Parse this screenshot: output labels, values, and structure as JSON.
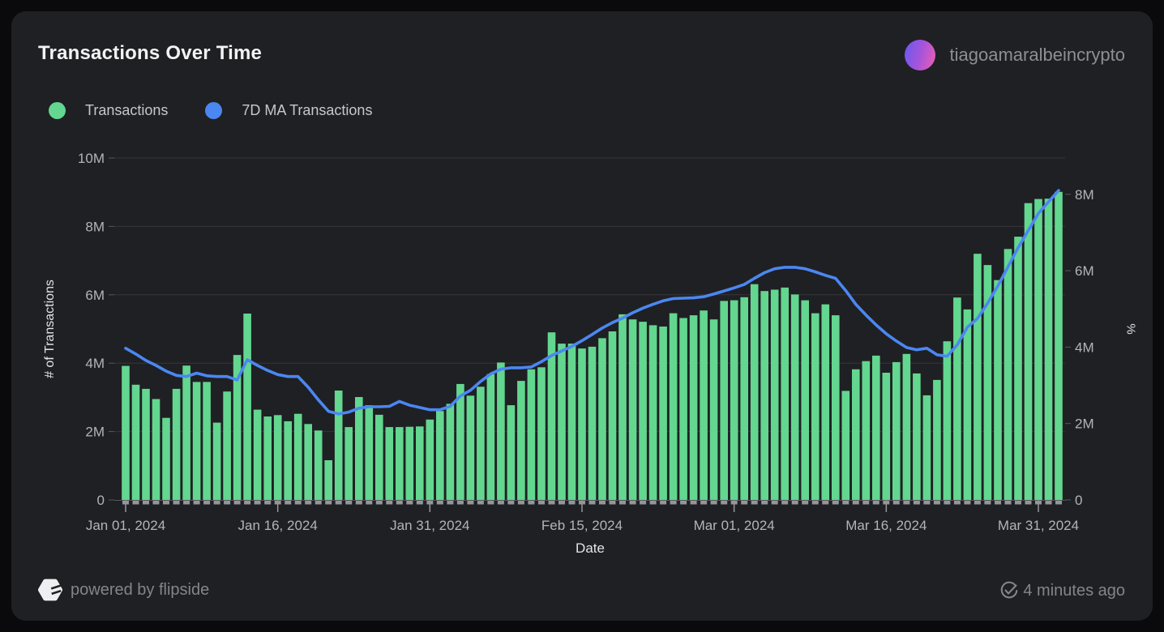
{
  "header": {
    "title": "Transactions Over Time",
    "username": "tiagoamaralbeincrypto"
  },
  "legend": [
    {
      "label": "Transactions",
      "color": "#63d68f"
    },
    {
      "label": "7D MA Transactions",
      "color": "#4b87f2"
    }
  ],
  "footer": {
    "powered_by": "powered by flipside",
    "updated": "4 minutes ago"
  },
  "chart_data": {
    "type": "bar",
    "title": "Transactions Over Time",
    "xlabel": "Date",
    "ylabel_left": "# of Transactions",
    "ylabel_right": "%",
    "units": "millions",
    "grid": true,
    "legend_position": "top-left",
    "y_left_max": 10,
    "y_right_max": 8.95,
    "y_left_ticks": [
      "0",
      "2M",
      "4M",
      "6M",
      "8M",
      "10M"
    ],
    "y_right_ticks": [
      "0",
      "2M",
      "4M",
      "6M",
      "8M"
    ],
    "x_ticks": [
      {
        "label": "Jan 01, 2024",
        "day": 0
      },
      {
        "label": "Jan 16, 2024",
        "day": 15
      },
      {
        "label": "Jan 31, 2024",
        "day": 30
      },
      {
        "label": "Feb 15, 2024",
        "day": 45
      },
      {
        "label": "Mar 01, 2024",
        "day": 60
      },
      {
        "label": "Mar 16, 2024",
        "day": 75
      },
      {
        "label": "Mar 31, 2024",
        "day": 90
      }
    ],
    "dates": [
      "2024-01-01",
      "2024-01-02",
      "2024-01-03",
      "2024-01-04",
      "2024-01-05",
      "2024-01-06",
      "2024-01-07",
      "2024-01-08",
      "2024-01-09",
      "2024-01-10",
      "2024-01-11",
      "2024-01-12",
      "2024-01-13",
      "2024-01-14",
      "2024-01-15",
      "2024-01-16",
      "2024-01-17",
      "2024-01-18",
      "2024-01-19",
      "2024-01-20",
      "2024-01-21",
      "2024-01-22",
      "2024-01-23",
      "2024-01-24",
      "2024-01-25",
      "2024-01-26",
      "2024-01-27",
      "2024-01-28",
      "2024-01-29",
      "2024-01-30",
      "2024-01-31",
      "2024-02-01",
      "2024-02-02",
      "2024-02-03",
      "2024-02-04",
      "2024-02-05",
      "2024-02-06",
      "2024-02-07",
      "2024-02-08",
      "2024-02-09",
      "2024-02-10",
      "2024-02-11",
      "2024-02-12",
      "2024-02-13",
      "2024-02-14",
      "2024-02-15",
      "2024-02-16",
      "2024-02-17",
      "2024-02-18",
      "2024-02-19",
      "2024-02-20",
      "2024-02-21",
      "2024-02-22",
      "2024-02-23",
      "2024-02-24",
      "2024-02-25",
      "2024-02-26",
      "2024-02-27",
      "2024-02-28",
      "2024-02-29",
      "2024-03-01",
      "2024-03-02",
      "2024-03-03",
      "2024-03-04",
      "2024-03-05",
      "2024-03-06",
      "2024-03-07",
      "2024-03-08",
      "2024-03-09",
      "2024-03-10",
      "2024-03-11",
      "2024-03-12",
      "2024-03-13",
      "2024-03-14",
      "2024-03-15",
      "2024-03-16",
      "2024-03-17",
      "2024-03-18",
      "2024-03-19",
      "2024-03-20",
      "2024-03-21",
      "2024-03-22",
      "2024-03-23",
      "2024-03-24",
      "2024-03-25",
      "2024-03-26",
      "2024-03-27",
      "2024-03-28",
      "2024-03-29",
      "2024-03-30",
      "2024-03-31",
      "2024-04-01",
      "2024-04-02"
    ],
    "series": [
      {
        "name": "Transactions",
        "type": "bar",
        "axis": "left",
        "color": "#63d68f",
        "values_millions": [
          3.92,
          3.37,
          3.25,
          2.95,
          2.4,
          3.25,
          3.93,
          3.45,
          3.45,
          2.26,
          3.17,
          4.24,
          5.45,
          2.64,
          2.44,
          2.48,
          2.3,
          2.52,
          2.22,
          2.03,
          1.16,
          3.2,
          2.13,
          3.01,
          2.77,
          2.49,
          2.13,
          2.13,
          2.14,
          2.15,
          2.35,
          2.6,
          2.81,
          3.39,
          3.05,
          3.31,
          3.68,
          4.02,
          2.77,
          3.48,
          3.82,
          3.88,
          4.9,
          4.57,
          4.57,
          4.43,
          4.48,
          4.73,
          4.93,
          5.43,
          5.28,
          5.21,
          5.11,
          5.07,
          5.46,
          5.32,
          5.4,
          5.54,
          5.28,
          5.82,
          5.84,
          5.93,
          6.31,
          6.11,
          6.15,
          6.21,
          6.01,
          5.84,
          5.46,
          5.72,
          5.4,
          3.19,
          3.82,
          4.06,
          4.22,
          3.72,
          4.03,
          4.27,
          3.7,
          3.06,
          3.51,
          4.64,
          5.92,
          5.57,
          7.2,
          6.87,
          6.43,
          7.34,
          7.7,
          8.68,
          8.8,
          8.81,
          9.01
        ]
      },
      {
        "name": "7D MA Transactions",
        "type": "line",
        "axis": "right",
        "color": "#4b87f2",
        "values_millions": [
          3.97,
          3.82,
          3.65,
          3.52,
          3.37,
          3.26,
          3.23,
          3.32,
          3.25,
          3.23,
          3.23,
          3.14,
          3.67,
          3.52,
          3.39,
          3.28,
          3.23,
          3.23,
          2.95,
          2.62,
          2.32,
          2.25,
          2.3,
          2.4,
          2.44,
          2.44,
          2.45,
          2.58,
          2.48,
          2.42,
          2.36,
          2.36,
          2.45,
          2.72,
          2.87,
          3.1,
          3.3,
          3.42,
          3.46,
          3.46,
          3.48,
          3.62,
          3.78,
          3.9,
          4.02,
          4.17,
          4.33,
          4.5,
          4.64,
          4.76,
          4.9,
          5.02,
          5.12,
          5.21,
          5.27,
          5.28,
          5.29,
          5.32,
          5.39,
          5.47,
          5.55,
          5.64,
          5.8,
          5.95,
          6.05,
          6.09,
          6.09,
          6.05,
          5.97,
          5.88,
          5.8,
          5.48,
          5.12,
          4.84,
          4.58,
          4.35,
          4.16,
          3.99,
          3.93,
          3.97,
          3.8,
          3.76,
          4.06,
          4.52,
          4.75,
          5.15,
          5.6,
          6.1,
          6.6,
          7.05,
          7.5,
          7.8,
          8.1
        ]
      }
    ]
  }
}
